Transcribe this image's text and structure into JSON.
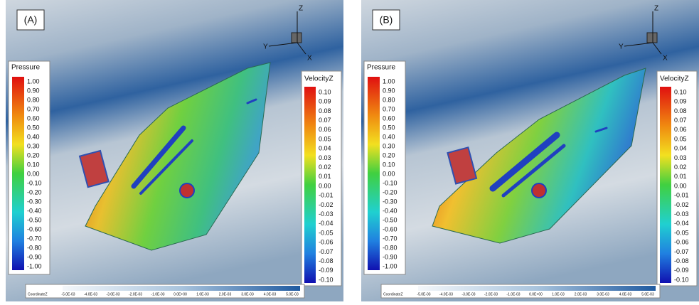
{
  "panels": [
    {
      "label": "(A)",
      "pressure_legend": {
        "title": "Pressure",
        "ticks": [
          "1.00",
          "0.90",
          "0.80",
          "0.70",
          "0.60",
          "0.50",
          "0.40",
          "0.30",
          "0.20",
          "0.10",
          "0.00",
          "-0.10",
          "-0.20",
          "-0.30",
          "-0.40",
          "-0.50",
          "-0.60",
          "-0.70",
          "-0.80",
          "-0.90",
          "-1.00"
        ]
      },
      "velocity_legend": {
        "title": "VelocityZ",
        "ticks": [
          "0.10",
          "0.09",
          "0.08",
          "0.07",
          "0.06",
          "0.05",
          "0.04",
          "0.03",
          "0.02",
          "0.01",
          "0.00",
          "-0.01",
          "-0.02",
          "-0.03",
          "-0.04",
          "-0.05",
          "-0.06",
          "-0.07",
          "-0.08",
          "-0.09",
          "-0.10"
        ]
      },
      "coordinate_legend": {
        "title": "CoordinateZ",
        "ticks": [
          "-5.0E-03",
          "-4.0E-03",
          "-3.0E-03",
          "-2.0E-03",
          "-1.0E-03",
          "0.0E+00",
          "1.0E-03",
          "2.0E-03",
          "3.0E-03",
          "4.0E-03",
          "5.0E-03"
        ]
      },
      "axes": {
        "z": "Z",
        "y": "Y",
        "x": "X"
      }
    },
    {
      "label": "(B)",
      "pressure_legend": {
        "title": "Pressure",
        "ticks": [
          "1.00",
          "0.90",
          "0.80",
          "0.70",
          "0.60",
          "0.50",
          "0.40",
          "0.30",
          "0.20",
          "0.10",
          "0.00",
          "-0.10",
          "-0.20",
          "-0.30",
          "-0.40",
          "-0.50",
          "-0.60",
          "-0.70",
          "-0.80",
          "-0.90",
          "-1.00"
        ]
      },
      "velocity_legend": {
        "title": "VelocityZ",
        "ticks": [
          "0.10",
          "0.09",
          "0.08",
          "0.07",
          "0.06",
          "0.05",
          "0.04",
          "0.03",
          "0.02",
          "0.01",
          "0.00",
          "-0.01",
          "-0.02",
          "-0.03",
          "-0.04",
          "-0.05",
          "-0.06",
          "-0.07",
          "-0.08",
          "-0.09",
          "-0.10"
        ]
      },
      "coordinate_legend": {
        "title": "CoordinateZ",
        "ticks": [
          "-5.0E-03",
          "-4.0E-03",
          "-3.0E-03",
          "-2.0E-03",
          "-1.0E-03",
          "0.0E+00",
          "1.0E-03",
          "2.0E-03",
          "3.0E-03",
          "4.0E-03",
          "5.0E-03"
        ]
      },
      "axes": {
        "z": "Z",
        "y": "Y",
        "x": "X"
      }
    }
  ]
}
